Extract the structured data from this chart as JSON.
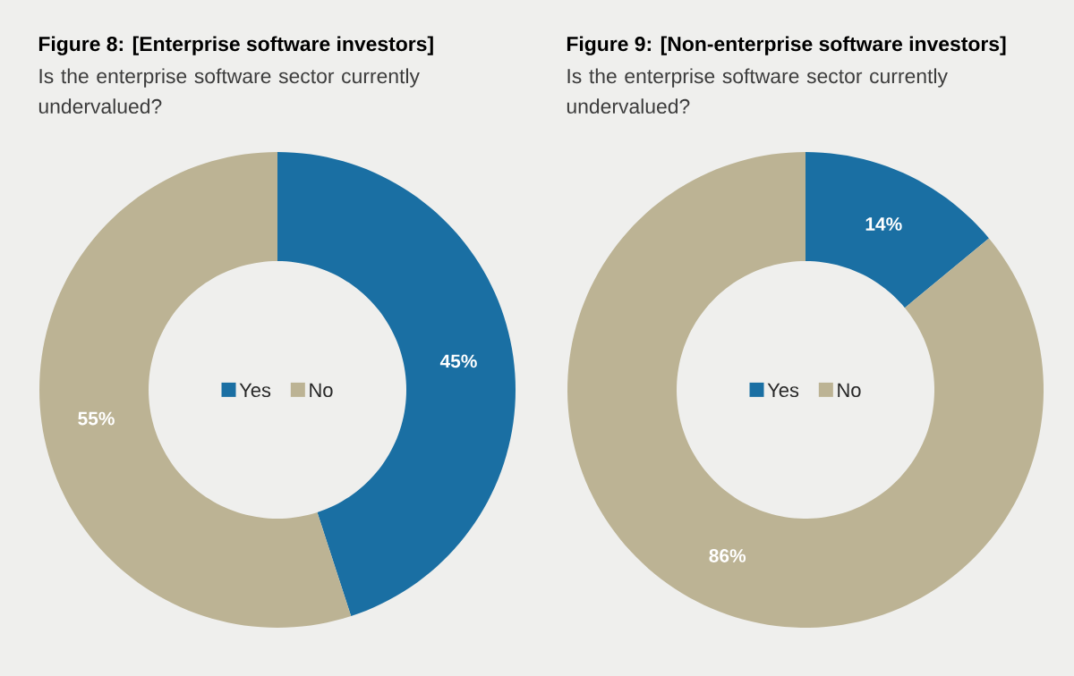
{
  "chart_data": [
    {
      "type": "donut",
      "title": "Figure 8: [Enterprise software investors]",
      "subtitle": "Is the enterprise software sector currently undervalued?",
      "categories": [
        "Yes",
        "No"
      ],
      "values": [
        45,
        55
      ],
      "value_labels": [
        "45%",
        "55%"
      ],
      "colors": [
        "#1a6fa3",
        "#bcb394"
      ],
      "legend": "center"
    },
    {
      "type": "donut",
      "title": "Figure 9: [Non-enterprise software investors]",
      "subtitle": "Is the enterprise software sector currently undervalued?",
      "categories": [
        "Yes",
        "No"
      ],
      "values": [
        14,
        86
      ],
      "value_labels": [
        "14%",
        "86%"
      ],
      "colors": [
        "#1a6fa3",
        "#bcb394"
      ],
      "legend": "center"
    }
  ]
}
